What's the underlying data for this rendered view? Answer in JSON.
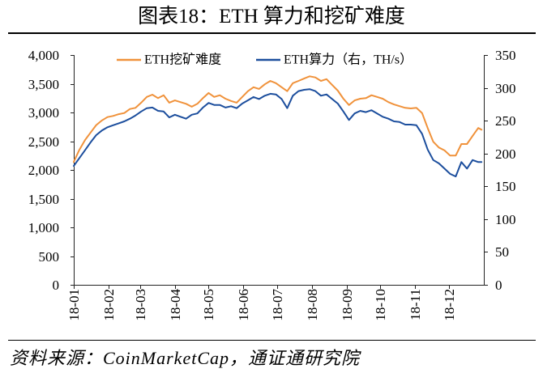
{
  "source": "资料来源：CoinMarketCap，通证通研究院",
  "chart_data": {
    "type": "line",
    "title": "图表18：ETH 算力和挖矿难度",
    "legend": "top",
    "grid": false,
    "x_range": [
      "2018-01-01",
      "2019-01-01"
    ],
    "x_ticks": [
      "2018-01-01",
      "2018-02-01",
      "2018-03-01",
      "2018-04-01",
      "2018-05-01",
      "2018-06-01",
      "2018-07-01",
      "2018-08-01",
      "2018-09-01",
      "2018-10-01",
      "2018-11-01",
      "2018-12-01"
    ],
    "x_tick_labels": [
      "18-01",
      "18-02",
      "18-03",
      "18-04",
      "18-05",
      "18-06",
      "18-07",
      "18-08",
      "18-09",
      "18-10",
      "18-11",
      "18-12"
    ],
    "y_left": {
      "range": [
        0,
        4000
      ],
      "tick_labels": [
        "0",
        "500",
        "1,000",
        "1,500",
        "2,000",
        "2,500",
        "3,000",
        "3,500",
        "4,000"
      ]
    },
    "y_right": {
      "range": [
        0,
        350
      ],
      "tick_labels": [
        "0",
        "50",
        "100",
        "150",
        "200",
        "250",
        "300",
        "350"
      ]
    },
    "x": [
      "2018-01-01",
      "2018-01-06",
      "2018-01-11",
      "2018-01-16",
      "2018-01-21",
      "2018-01-26",
      "2018-01-31",
      "2018-02-05",
      "2018-02-10",
      "2018-02-15",
      "2018-02-20",
      "2018-02-25",
      "2018-03-02",
      "2018-03-07",
      "2018-03-12",
      "2018-03-17",
      "2018-03-22",
      "2018-03-27",
      "2018-04-01",
      "2018-04-06",
      "2018-04-11",
      "2018-04-16",
      "2018-04-21",
      "2018-04-26",
      "2018-05-01",
      "2018-05-06",
      "2018-05-11",
      "2018-05-16",
      "2018-05-21",
      "2018-05-26",
      "2018-05-31",
      "2018-06-05",
      "2018-06-10",
      "2018-06-15",
      "2018-06-20",
      "2018-06-25",
      "2018-06-30",
      "2018-07-05",
      "2018-07-10",
      "2018-07-15",
      "2018-07-20",
      "2018-07-25",
      "2018-07-30",
      "2018-08-04",
      "2018-08-09",
      "2018-08-14",
      "2018-08-19",
      "2018-08-24",
      "2018-08-29",
      "2018-09-03",
      "2018-09-08",
      "2018-09-13",
      "2018-09-18",
      "2018-09-23",
      "2018-09-28",
      "2018-10-03",
      "2018-10-08",
      "2018-10-13",
      "2018-10-18",
      "2018-10-23",
      "2018-10-28",
      "2018-11-02",
      "2018-11-07",
      "2018-11-12",
      "2018-11-17",
      "2018-11-22",
      "2018-11-27",
      "2018-12-02",
      "2018-12-07",
      "2018-12-12",
      "2018-12-17",
      "2018-12-22",
      "2018-12-27",
      "2018-12-30"
    ],
    "series": [
      {
        "name": "ETH挖矿难度",
        "axis": "left",
        "color": "#F0923B",
        "values": [
          2140,
          2350,
          2520,
          2650,
          2780,
          2860,
          2920,
          2940,
          2970,
          2990,
          3060,
          3080,
          3170,
          3270,
          3310,
          3250,
          3300,
          3170,
          3210,
          3180,
          3150,
          3100,
          3150,
          3250,
          3340,
          3270,
          3300,
          3240,
          3200,
          3170,
          3270,
          3370,
          3440,
          3410,
          3490,
          3550,
          3510,
          3440,
          3370,
          3510,
          3550,
          3590,
          3630,
          3610,
          3550,
          3580,
          3480,
          3380,
          3240,
          3130,
          3210,
          3240,
          3250,
          3300,
          3270,
          3240,
          3180,
          3140,
          3110,
          3080,
          3070,
          3080,
          2990,
          2730,
          2490,
          2390,
          2340,
          2250,
          2250,
          2450,
          2450,
          2590,
          2730,
          2700
        ]
      },
      {
        "name": "ETH算力（右，TH/s）",
        "axis": "right",
        "color": "#1C4E9D",
        "values": [
          181,
          193,
          205,
          217,
          228,
          235,
          240,
          243,
          246,
          249,
          253,
          258,
          264,
          269,
          270,
          265,
          264,
          255,
          259,
          256,
          253,
          259,
          261,
          270,
          277,
          274,
          274,
          270,
          272,
          269,
          276,
          281,
          286,
          283,
          288,
          291,
          290,
          283,
          269,
          288,
          295,
          297,
          298,
          295,
          288,
          290,
          283,
          276,
          264,
          251,
          261,
          265,
          263,
          266,
          261,
          256,
          253,
          249,
          248,
          244,
          244,
          243,
          230,
          206,
          190,
          185,
          177,
          169,
          165,
          187,
          177,
          190,
          187,
          187
        ]
      }
    ]
  }
}
